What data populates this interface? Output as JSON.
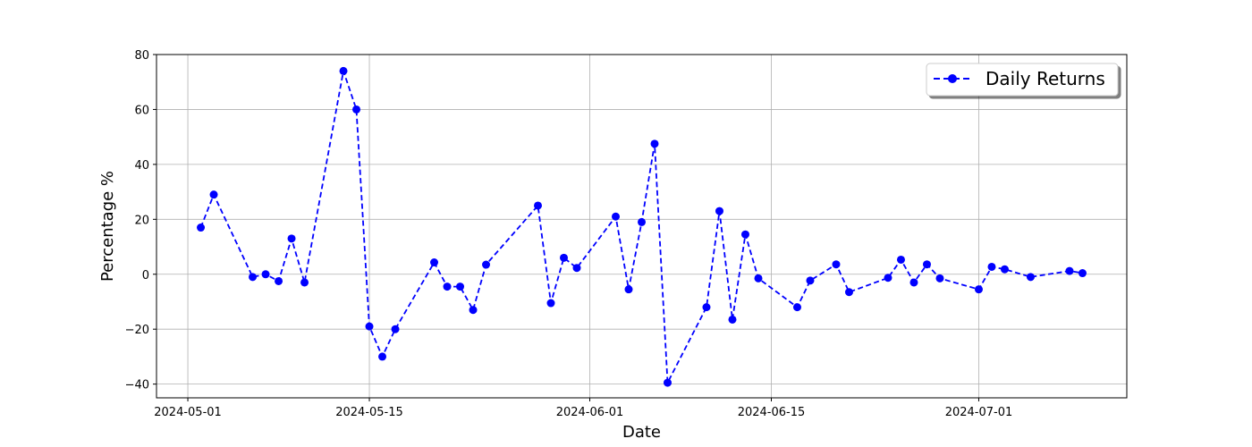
{
  "chart_data": {
    "type": "line",
    "title": "",
    "xlabel": "Date",
    "ylabel": "Percentage %",
    "xlim": [
      "2024-04-28T14:00",
      "2024-07-12T10:00"
    ],
    "ylim": [
      -45,
      80
    ],
    "grid": true,
    "legend_placement": "upper right",
    "x_ticks": [
      "2024-05-01",
      "2024-05-15",
      "2024-06-01",
      "2024-06-15",
      "2024-07-01"
    ],
    "y_ticks": [
      -40,
      -20,
      0,
      20,
      40,
      60,
      80
    ],
    "series": [
      {
        "name": "Daily Returns",
        "color": "#0000ff",
        "line_style": "dashed",
        "marker": "circle",
        "x": [
          "2024-05-02",
          "2024-05-03",
          "2024-05-06",
          "2024-05-07",
          "2024-05-08",
          "2024-05-09",
          "2024-05-10",
          "2024-05-13",
          "2024-05-14",
          "2024-05-15",
          "2024-05-16",
          "2024-05-17",
          "2024-05-20",
          "2024-05-21",
          "2024-05-22",
          "2024-05-23",
          "2024-05-24",
          "2024-05-28",
          "2024-05-29",
          "2024-05-30",
          "2024-05-31",
          "2024-06-03",
          "2024-06-04",
          "2024-06-05",
          "2024-06-06",
          "2024-06-07",
          "2024-06-10",
          "2024-06-11",
          "2024-06-12",
          "2024-06-13",
          "2024-06-14",
          "2024-06-17",
          "2024-06-18",
          "2024-06-20",
          "2024-06-21",
          "2024-06-24",
          "2024-06-25",
          "2024-06-26",
          "2024-06-27",
          "2024-06-28",
          "2024-07-01",
          "2024-07-02",
          "2024-07-03",
          "2024-07-05",
          "2024-07-08",
          "2024-07-09"
        ],
        "values": [
          17,
          29,
          -1,
          0,
          -2.5,
          13,
          -3,
          74,
          60,
          -19,
          -30,
          -20,
          4.3,
          -4.5,
          -4.5,
          -13,
          3.5,
          25,
          -10.5,
          6,
          2.3,
          21,
          -5.5,
          19,
          47.5,
          -39.5,
          -12,
          23,
          -16.5,
          14.5,
          -1.5,
          -12,
          -2.3,
          3.6,
          -6.5,
          -1.3,
          5.3,
          -3,
          3.6,
          -1.5,
          -5.5,
          2.7,
          1.8,
          -1,
          1.2,
          0.4
        ]
      }
    ]
  }
}
